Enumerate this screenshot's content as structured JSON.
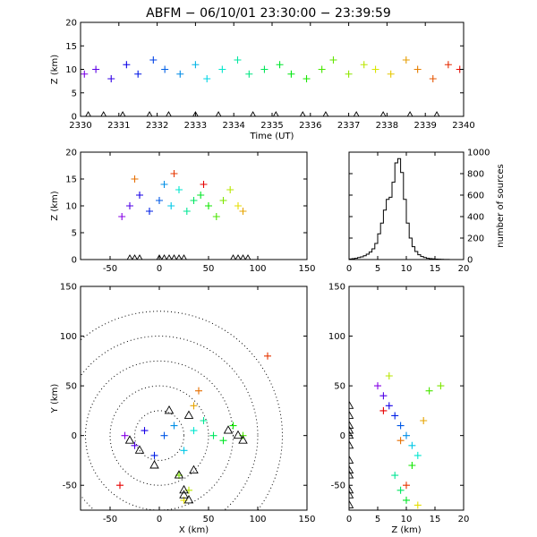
{
  "figure": {
    "title": "ABFM − 06/10/01 23:30:00 − 23:39:59"
  },
  "chart_data": [
    {
      "id": "time-height",
      "type": "scatter",
      "xlabel": "Time (UT)",
      "ylabel": "Z (km)",
      "xlim": [
        2330,
        2340
      ],
      "ylim": [
        0,
        20
      ],
      "xticks": [
        2330,
        2331,
        2332,
        2333,
        2334,
        2335,
        2336,
        2337,
        2338,
        2339,
        2340
      ],
      "yticks": [
        0,
        5,
        10,
        15,
        20
      ],
      "color_by": "time (purple to red)",
      "series": [
        {
          "marker": "plus",
          "x": [
            2330.1,
            2330.4,
            2330.8,
            2331.2,
            2331.5,
            2331.9,
            2332.2,
            2332.6,
            2333.0,
            2333.3,
            2333.7,
            2334.1,
            2334.4,
            2334.8,
            2335.2,
            2335.5,
            2335.9,
            2336.3,
            2336.6,
            2337.0,
            2337.4,
            2337.7,
            2338.1,
            2338.5,
            2338.8,
            2339.2,
            2339.6,
            2339.9
          ],
          "y": [
            9,
            10,
            8,
            11,
            9,
            12,
            10,
            9,
            11,
            8,
            10,
            12,
            9,
            10,
            11,
            9,
            8,
            10,
            12,
            9,
            11,
            10,
            9,
            12,
            10,
            8,
            11,
            10
          ]
        },
        {
          "marker": "triangle",
          "description": "ground-level events",
          "x": [
            2330.2,
            2330.6,
            2331.1,
            2331.8,
            2332.3,
            2333.0,
            2333.6,
            2334.5,
            2335.1,
            2335.8,
            2336.4,
            2337.2,
            2337.9,
            2338.6,
            2339.3
          ],
          "y": [
            0,
            0,
            0,
            0,
            0,
            0,
            0,
            0,
            0,
            0,
            0,
            0,
            0,
            0,
            0
          ]
        }
      ]
    },
    {
      "id": "x-z",
      "type": "scatter",
      "xlabel": "",
      "ylabel": "Z (km)",
      "xlim": [
        -80,
        150
      ],
      "ylim": [
        0,
        20
      ],
      "xticks": [
        -50,
        0,
        50,
        100,
        150
      ],
      "yticks": [
        0,
        5,
        10,
        15,
        20
      ],
      "series": [
        {
          "marker": "plus",
          "x": [
            -38,
            -30,
            -20,
            -10,
            0,
            5,
            12,
            20,
            28,
            35,
            42,
            50,
            58,
            65,
            72,
            80,
            85,
            -25,
            15,
            45
          ],
          "y": [
            8,
            10,
            12,
            9,
            11,
            14,
            10,
            13,
            9,
            11,
            12,
            10,
            8,
            11,
            13,
            10,
            9,
            15,
            16,
            14
          ]
        },
        {
          "marker": "triangle",
          "description": "ground-level events",
          "x": [
            -30,
            -25,
            -20,
            0,
            5,
            10,
            15,
            20,
            25,
            75,
            80,
            85,
            90
          ],
          "y": [
            0,
            0,
            0,
            0,
            0,
            0,
            0,
            0,
            0,
            0,
            0,
            0,
            0
          ]
        }
      ]
    },
    {
      "id": "altitude-histogram",
      "type": "bar",
      "xlabel": "",
      "ylabel": "number of sources",
      "xlim": [
        0,
        20
      ],
      "ylim": [
        0,
        1000
      ],
      "xticks": [
        0,
        5,
        10,
        15,
        20
      ],
      "yticks": [
        0,
        200,
        400,
        600,
        800,
        1000
      ],
      "bin_width": 0.5,
      "bin_starts": [
        0,
        0.5,
        1,
        1.5,
        2,
        2.5,
        3,
        3.5,
        4,
        4.5,
        5,
        5.5,
        6,
        6.5,
        7,
        7.5,
        8,
        8.5,
        9,
        9.5,
        10,
        10.5,
        11,
        11.5,
        12,
        12.5,
        13,
        13.5,
        14,
        14.5,
        15,
        15.5,
        16,
        16.5,
        17,
        17.5,
        18,
        18.5,
        19,
        19.5
      ],
      "values": [
        5,
        8,
        12,
        18,
        25,
        35,
        50,
        70,
        100,
        150,
        240,
        340,
        460,
        560,
        580,
        720,
        900,
        940,
        810,
        560,
        340,
        200,
        120,
        75,
        45,
        28,
        18,
        12,
        8,
        6,
        4,
        3,
        2,
        1,
        1,
        0,
        0,
        0,
        0,
        0
      ]
    },
    {
      "id": "x-y",
      "type": "scatter",
      "xlabel": "X (km)",
      "ylabel": "Y (km)",
      "xlim": [
        -80,
        150
      ],
      "ylim": [
        -75,
        150
      ],
      "xticks": [
        -50,
        0,
        50,
        100,
        150
      ],
      "yticks": [
        -50,
        0,
        50,
        100,
        150
      ],
      "range_rings_km": [
        25,
        50,
        75,
        100,
        125
      ],
      "series": [
        {
          "marker": "plus",
          "x": [
            -35,
            -25,
            -15,
            -5,
            5,
            15,
            25,
            35,
            45,
            55,
            65,
            75,
            85,
            20,
            30,
            25,
            35,
            40,
            110,
            -40
          ],
          "y": [
            0,
            -10,
            5,
            -20,
            0,
            10,
            -15,
            5,
            15,
            0,
            -5,
            10,
            0,
            -40,
            -55,
            -65,
            30,
            45,
            80,
            -50
          ]
        },
        {
          "marker": "triangle",
          "description": "ground-level events",
          "x": [
            -30,
            -20,
            -5,
            10,
            20,
            25,
            30,
            35,
            70,
            80,
            85,
            30,
            25
          ],
          "y": [
            -5,
            -15,
            -30,
            25,
            -40,
            -55,
            -65,
            -35,
            5,
            0,
            -5,
            20,
            -60
          ]
        }
      ]
    },
    {
      "id": "z-y",
      "type": "scatter",
      "xlabel": "Z (km)",
      "ylabel": "",
      "xlim": [
        0,
        20
      ],
      "ylim": [
        -75,
        150
      ],
      "xticks": [
        0,
        5,
        10,
        15,
        20
      ],
      "yticks": [
        -50,
        0,
        50,
        100,
        150
      ],
      "series": [
        {
          "marker": "plus",
          "x": [
            5,
            6,
            7,
            8,
            9,
            10,
            11,
            12,
            8,
            9,
            10,
            11,
            14,
            16,
            7,
            12,
            13,
            9,
            10,
            6
          ],
          "y": [
            50,
            40,
            30,
            20,
            10,
            0,
            -10,
            -20,
            -40,
            -55,
            -65,
            -30,
            45,
            50,
            60,
            -70,
            15,
            -5,
            -50,
            25
          ]
        },
        {
          "marker": "triangle",
          "description": "ground-level events",
          "x": [
            0,
            0,
            0,
            0,
            0,
            0,
            0,
            0,
            0,
            0,
            0,
            0
          ],
          "y": [
            -70,
            -55,
            -40,
            -25,
            -10,
            0,
            10,
            20,
            30,
            -60,
            -35,
            5
          ]
        }
      ]
    }
  ]
}
